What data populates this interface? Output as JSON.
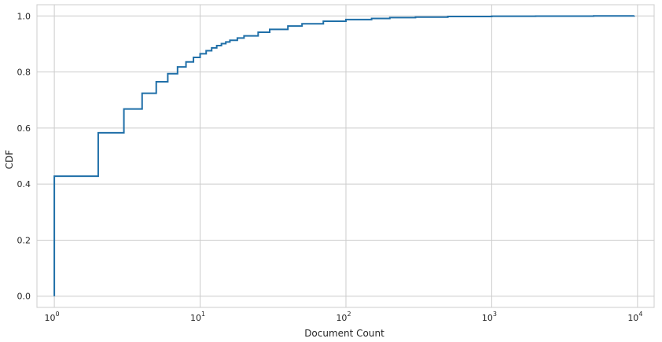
{
  "chart_data": {
    "type": "line",
    "title": "",
    "xlabel": "Document Count",
    "ylabel": "CDF",
    "xscale": "log",
    "xlim": [
      0.76,
      13000
    ],
    "ylim": [
      -0.04,
      1.04
    ],
    "grid": true,
    "legend": "none",
    "line_color": "#1f6fa8",
    "x_ticks": [
      {
        "value": 1,
        "base": "10",
        "exp": "0"
      },
      {
        "value": 10,
        "base": "10",
        "exp": "1"
      },
      {
        "value": 100,
        "base": "10",
        "exp": "2"
      },
      {
        "value": 1000,
        "base": "10",
        "exp": "3"
      },
      {
        "value": 10000,
        "base": "10",
        "exp": "4"
      }
    ],
    "y_ticks": [
      {
        "value": 0.0,
        "label": "0.0"
      },
      {
        "value": 0.2,
        "label": "0.2"
      },
      {
        "value": 0.4,
        "label": "0.4"
      },
      {
        "value": 0.6,
        "label": "0.6"
      },
      {
        "value": 0.8,
        "label": "0.8"
      },
      {
        "value": 1.0,
        "label": "1.0"
      }
    ],
    "series": [
      {
        "drawstyle": "steps-post",
        "x": [
          1,
          1,
          2,
          3,
          4,
          5,
          6,
          7,
          8,
          9,
          10,
          11,
          12,
          13,
          14,
          15,
          16,
          18,
          20,
          25,
          30,
          40,
          50,
          70,
          100,
          150,
          200,
          300,
          500,
          1000,
          2000,
          5000,
          9500
        ],
        "y": [
          0.0,
          0.428,
          0.583,
          0.668,
          0.724,
          0.765,
          0.794,
          0.818,
          0.836,
          0.852,
          0.865,
          0.876,
          0.886,
          0.894,
          0.901,
          0.907,
          0.913,
          0.921,
          0.929,
          0.942,
          0.952,
          0.964,
          0.972,
          0.981,
          0.987,
          0.991,
          0.994,
          0.996,
          0.998,
          0.999,
          0.9995,
          0.9999,
          1.0
        ]
      }
    ]
  }
}
